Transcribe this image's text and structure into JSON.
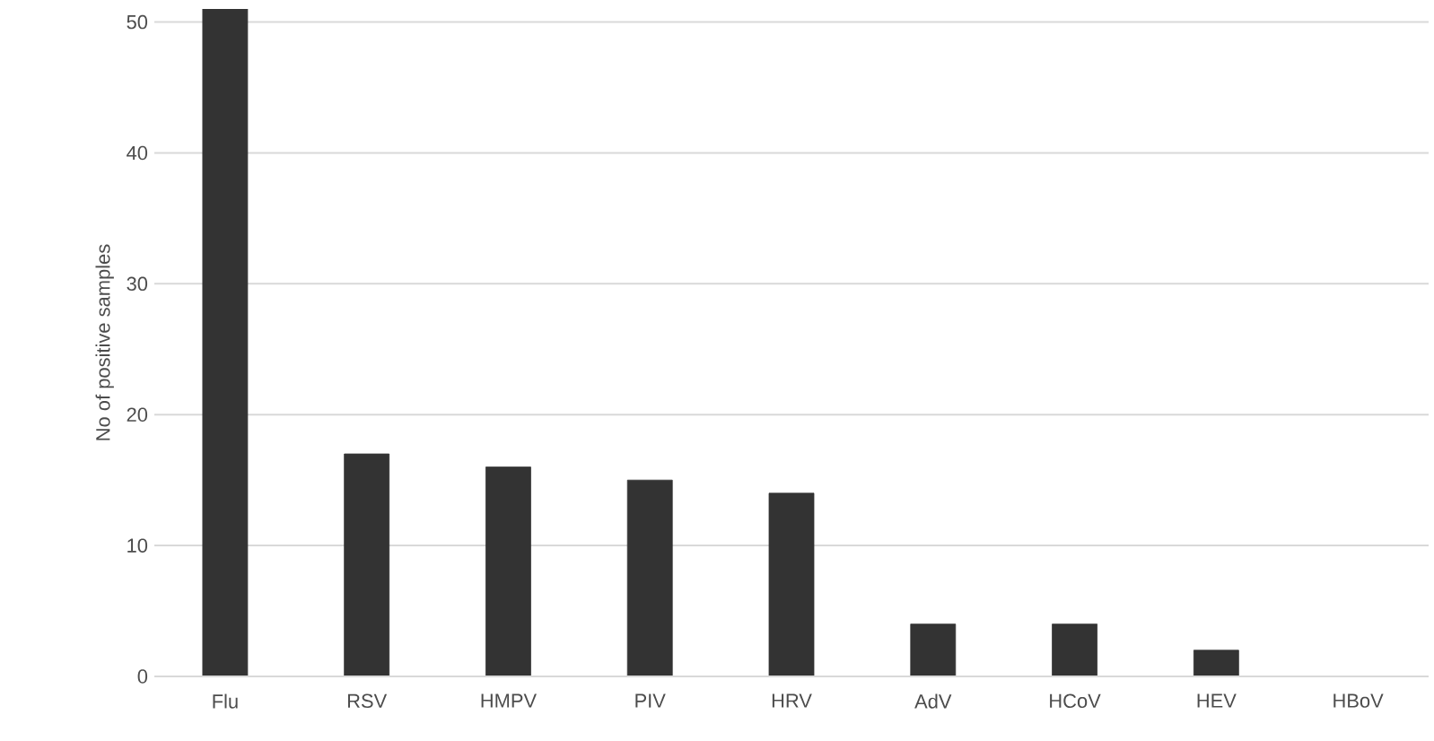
{
  "chart_data": {
    "type": "bar",
    "ylabel": "No of positive samples",
    "categories": [
      "Flu",
      "RSV",
      "HMPV",
      "PIV",
      "HRV",
      "AdV",
      "HCoV",
      "HEV",
      "HBoV"
    ],
    "values": [
      51,
      17,
      16,
      15,
      14,
      4,
      4,
      2,
      0
    ],
    "color": "#333333",
    "ylim": [
      0,
      51
    ],
    "yticks": [
      0,
      10,
      20,
      30,
      40,
      50
    ],
    "grid": "y"
  }
}
